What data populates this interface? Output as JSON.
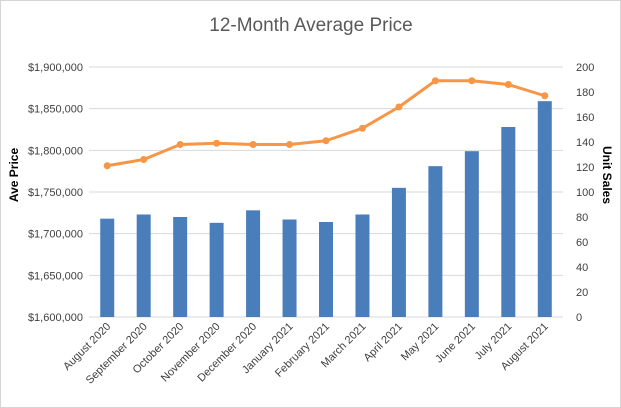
{
  "chart_data": {
    "type": "bar+line",
    "title": "12-Month Average Price",
    "categories": [
      "August 2020",
      "September 2020",
      "October 2020",
      "November 2020",
      "December 2020",
      "January 2021",
      "February 2021",
      "March 2021",
      "April 2021",
      "May 2021",
      "June 2021",
      "July 2021",
      "August 2021"
    ],
    "series": [
      {
        "name": "",
        "type": "bar",
        "axis": "left",
        "color": "#4a7ebb",
        "values": [
          1718000,
          1723000,
          1720000,
          1713000,
          1728000,
          1717000,
          1714000,
          1723000,
          1755000,
          1781000,
          1799000,
          1828000,
          1859000
        ]
      },
      {
        "name": "",
        "type": "line",
        "axis": "right",
        "color": "#f79646",
        "values": [
          121,
          126,
          138,
          139,
          138,
          138,
          141,
          151,
          168,
          189,
          189,
          186,
          177
        ]
      }
    ],
    "ylabel": "Ave Price",
    "y2label": "Unit Sales",
    "ylim": [
      1600000,
      1900000
    ],
    "y2lim": [
      0,
      200
    ],
    "yticks": [
      "$1,600,000",
      "$1,650,000",
      "$1,700,000",
      "$1,750,000",
      "$1,800,000",
      "$1,850,000",
      "$1,900,000"
    ],
    "y2ticks": [
      "0",
      "20",
      "40",
      "60",
      "80",
      "100",
      "120",
      "140",
      "160",
      "180",
      "200"
    ],
    "grid": true
  }
}
